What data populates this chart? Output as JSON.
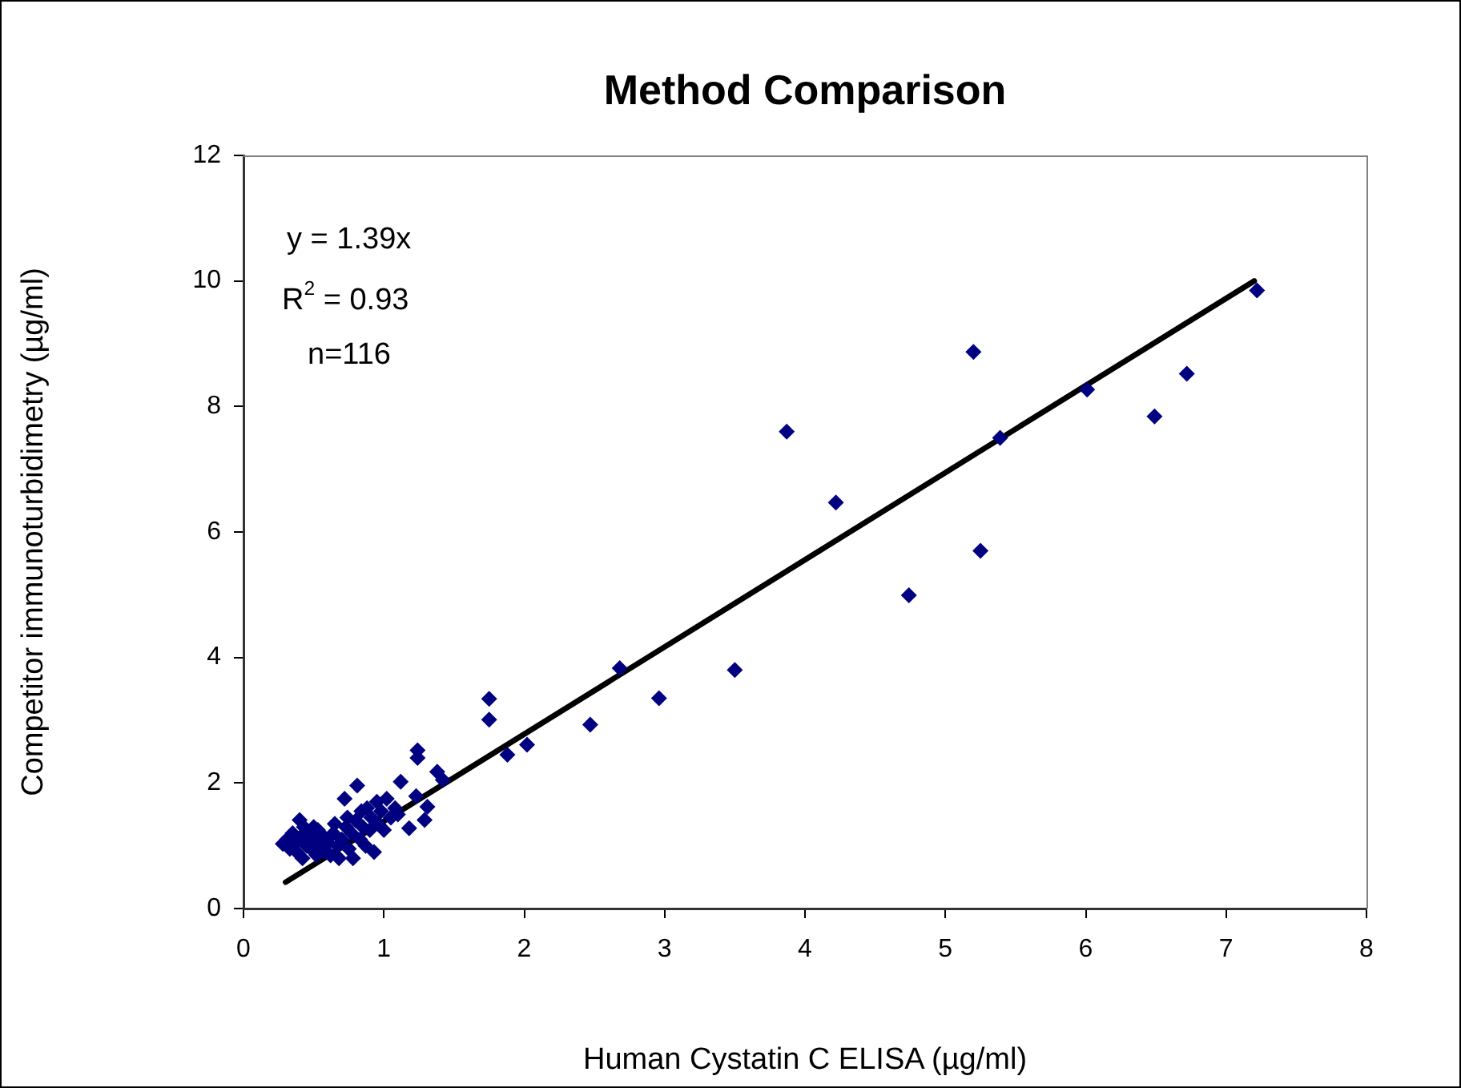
{
  "chart_data": {
    "type": "scatter",
    "title": "Method Comparison",
    "xlabel": "Human Cystatin C ELISA (µg/ml)",
    "ylabel": "Competitor immunoturbidimetry (µg/ml)",
    "annotations": [
      "y = 1.39x",
      "R$^{2}$ = 0.93",
      "n=116"
    ],
    "xlim": [
      0,
      8
    ],
    "xticks": [
      0,
      1,
      2,
      3,
      4,
      5,
      6,
      7,
      8
    ],
    "ylim": [
      0,
      12
    ],
    "yticks": [
      0,
      2,
      4,
      6,
      8,
      10,
      12
    ],
    "grid": false,
    "legend": false,
    "marker": "diamond",
    "series": [
      {
        "color": "#000080",
        "x": [
          0.28,
          0.31,
          0.33,
          0.35,
          0.37,
          0.38,
          0.4,
          0.41,
          0.42,
          0.43,
          0.45,
          0.46,
          0.48,
          0.5,
          0.5,
          0.52,
          0.53,
          0.55,
          0.57,
          0.58,
          0.6,
          0.62,
          0.64,
          0.65,
          0.67,
          0.68,
          0.7,
          0.72,
          0.73,
          0.74,
          0.75,
          0.77,
          0.78,
          0.8,
          0.81,
          0.83,
          0.84,
          0.85,
          0.87,
          0.88,
          0.9,
          0.91,
          0.93,
          0.95,
          0.96,
          0.98,
          1.0,
          1.02,
          1.05,
          1.08,
          1.1,
          1.12,
          1.18,
          1.23,
          1.24,
          1.24,
          1.29,
          1.31,
          1.38,
          1.42,
          1.75,
          1.75,
          1.88,
          2.02,
          2.47,
          2.68,
          2.96,
          3.5,
          3.87,
          4.22,
          4.74,
          5.2,
          5.25,
          5.39,
          6.01,
          6.49,
          6.72,
          7.22
        ],
        "values": [
          1.03,
          1.1,
          0.95,
          1.2,
          1.05,
          0.9,
          1.41,
          1.15,
          0.8,
          1.3,
          1.0,
          1.2,
          0.95,
          1.1,
          1.3,
          0.85,
          1.25,
          1.0,
          1.15,
          0.9,
          1.05,
          0.85,
          1.2,
          1.35,
          1.0,
          0.8,
          1.1,
          1.75,
          1.3,
          1.45,
          0.95,
          1.2,
          0.8,
          1.4,
          1.96,
          1.1,
          1.55,
          1.3,
          1.0,
          1.6,
          1.25,
          1.45,
          0.9,
          1.7,
          1.35,
          1.55,
          1.25,
          1.75,
          1.45,
          1.6,
          1.5,
          2.02,
          1.28,
          1.79,
          2.52,
          2.4,
          1.41,
          1.62,
          2.18,
          2.05,
          3.34,
          3.01,
          2.45,
          2.61,
          2.93,
          3.83,
          3.35,
          3.8,
          7.6,
          6.47,
          4.99,
          8.87,
          5.7,
          7.5,
          8.27,
          7.84,
          8.52,
          9.85
        ]
      },
      {
        "type": "line",
        "color": "#000000",
        "marker": "none",
        "x": [
          0.3,
          7.2
        ],
        "values": [
          0.42,
          10.0
        ]
      }
    ]
  }
}
